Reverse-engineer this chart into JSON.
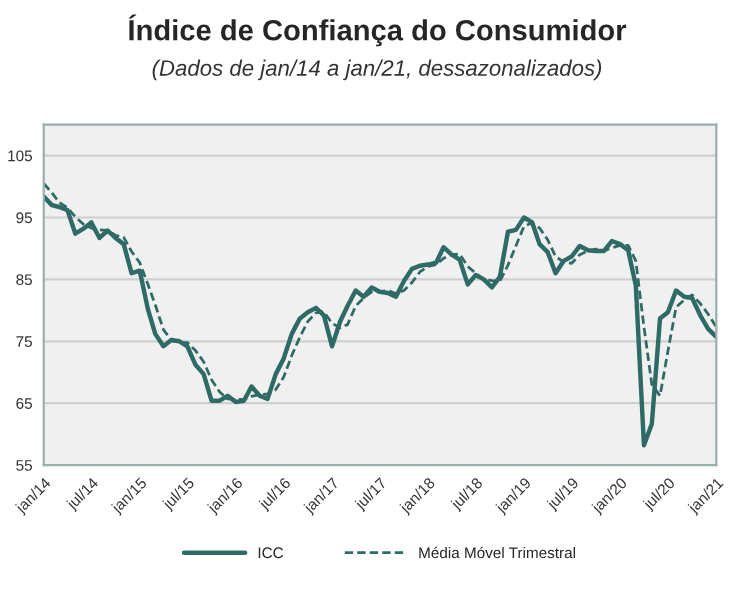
{
  "chart_data": {
    "type": "line",
    "title": "Índice de Confiança do Consumidor",
    "subtitle": "(Dados de jan/14 a jan/21, dessazonalizados)",
    "x": [
      "2014-01",
      "2014-02",
      "2014-03",
      "2014-04",
      "2014-05",
      "2014-06",
      "2014-07",
      "2014-08",
      "2014-09",
      "2014-10",
      "2014-11",
      "2014-12",
      "2015-01",
      "2015-02",
      "2015-03",
      "2015-04",
      "2015-05",
      "2015-06",
      "2015-07",
      "2015-08",
      "2015-09",
      "2015-10",
      "2015-11",
      "2015-12",
      "2016-01",
      "2016-02",
      "2016-03",
      "2016-04",
      "2016-05",
      "2016-06",
      "2016-07",
      "2016-08",
      "2016-09",
      "2016-10",
      "2016-11",
      "2016-12",
      "2017-01",
      "2017-02",
      "2017-03",
      "2017-04",
      "2017-05",
      "2017-06",
      "2017-07",
      "2017-08",
      "2017-09",
      "2017-10",
      "2017-11",
      "2017-12",
      "2018-01",
      "2018-02",
      "2018-03",
      "2018-04",
      "2018-05",
      "2018-06",
      "2018-07",
      "2018-08",
      "2018-09",
      "2018-10",
      "2018-11",
      "2018-12",
      "2019-01",
      "2019-02",
      "2019-03",
      "2019-04",
      "2019-05",
      "2019-06",
      "2019-07",
      "2019-08",
      "2019-09",
      "2019-10",
      "2019-11",
      "2019-12",
      "2020-01",
      "2020-02",
      "2020-03",
      "2020-04",
      "2020-05",
      "2020-06",
      "2020-07",
      "2020-08",
      "2020-09",
      "2020-10",
      "2020-11",
      "2020-12",
      "2021-01"
    ],
    "series": [
      {
        "name": "ICC",
        "color": "#2f6b66",
        "line_style": "solid",
        "values": [
          98.4,
          97,
          96.7,
          96.2,
          92.4,
          93.2,
          94.2,
          91.7,
          92.9,
          91.7,
          90.7,
          86,
          86.4,
          80.2,
          76.2,
          74.2,
          75.2,
          75,
          74.2,
          71.2,
          69.7,
          65.4,
          65.4,
          66.2,
          65.2,
          65.4,
          67.7,
          66.2,
          65.7,
          69.7,
          72.2,
          76.2,
          78.7,
          79.7,
          80.4,
          79.2,
          74.2,
          78.2,
          80.7,
          83.2,
          82.2,
          83.7,
          83,
          82.8,
          82.2,
          84.7,
          86.7,
          87.2,
          87.4,
          87.7,
          90.2,
          89,
          88.2,
          84.2,
          85.7,
          85,
          83.7,
          85.4,
          92.7,
          93,
          95,
          94.2,
          90.7,
          89.4,
          86,
          88,
          88.7,
          90.4,
          89.7,
          89.6,
          89.6,
          91.2,
          90.7,
          89.7,
          84,
          58.2,
          61.7,
          78.7,
          79.7,
          83.2,
          82.2,
          82,
          79.2,
          77,
          75.7
        ]
      },
      {
        "name": "Média Móvel Trimestral",
        "color": "#2f6b66",
        "line_style": "dashed",
        "values": [
          100.5,
          99,
          97.4,
          96.6,
          95.1,
          93.9,
          93.3,
          93,
          92.9,
          92.1,
          91.8,
          89.5,
          87.7,
          84.2,
          80.9,
          76.9,
          75.2,
          74.8,
          74.8,
          73.5,
          71.7,
          68.8,
          66.8,
          65.7,
          65.6,
          65.6,
          66.1,
          66.4,
          66.5,
          67.2,
          69.2,
          72.7,
          75.7,
          78.2,
          79.6,
          79.8,
          77.9,
          77.2,
          77.7,
          80.7,
          82,
          83,
          83,
          83.2,
          82.7,
          83.2,
          84.5,
          86.2,
          87.1,
          87.4,
          88.4,
          89,
          89.1,
          87.1,
          86,
          85,
          84.8,
          84.7,
          87.3,
          90.4,
          93.6,
          94.1,
          93.3,
          91.4,
          88.7,
          87.8,
          87.6,
          89,
          89.6,
          89.9,
          89.6,
          90.1,
          90.5,
          90.5,
          88,
          77.3,
          68,
          66.2,
          73.4,
          80.5,
          81.7,
          82.5,
          81.1,
          79.4,
          77.3
        ]
      }
    ],
    "xlim": [
      "2014-01",
      "2021-01"
    ],
    "xticks": [
      {
        "value": "2014-01",
        "label": "jan/14"
      },
      {
        "value": "2014-07",
        "label": "jul/14"
      },
      {
        "value": "2015-01",
        "label": "jan/15"
      },
      {
        "value": "2015-07",
        "label": "jul/15"
      },
      {
        "value": "2016-01",
        "label": "jan/16"
      },
      {
        "value": "2016-07",
        "label": "jul/16"
      },
      {
        "value": "2017-01",
        "label": "jan/17"
      },
      {
        "value": "2017-07",
        "label": "jul/17"
      },
      {
        "value": "2018-01",
        "label": "jan/18"
      },
      {
        "value": "2018-07",
        "label": "jul/18"
      },
      {
        "value": "2019-01",
        "label": "jan/19"
      },
      {
        "value": "2019-07",
        "label": "jul/19"
      },
      {
        "value": "2020-01",
        "label": "jan/20"
      },
      {
        "value": "2020-07",
        "label": "jul/20"
      },
      {
        "value": "2021-01",
        "label": "jan/21"
      }
    ],
    "ylim": [
      55,
      110
    ],
    "yticks": [
      55,
      65,
      75,
      85,
      95,
      105
    ],
    "grid": "y",
    "legend": "bottom",
    "marker": "none"
  }
}
